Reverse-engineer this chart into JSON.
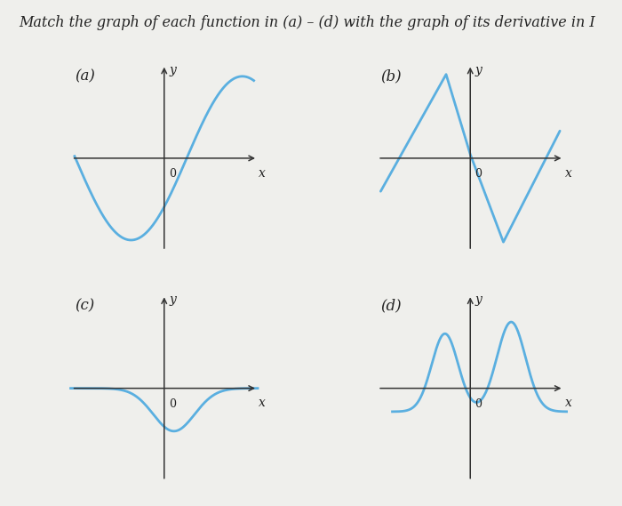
{
  "title": "Match the graph of each function in (a) – (d) with the graph of its derivative in I",
  "title_fontsize": 11.5,
  "curve_color": "#5aafe0",
  "axis_color": "#333333",
  "label_color": "#222222",
  "background_color": "#efefec",
  "panels": [
    "(a)",
    "(b)",
    "(c)",
    "(d)"
  ]
}
